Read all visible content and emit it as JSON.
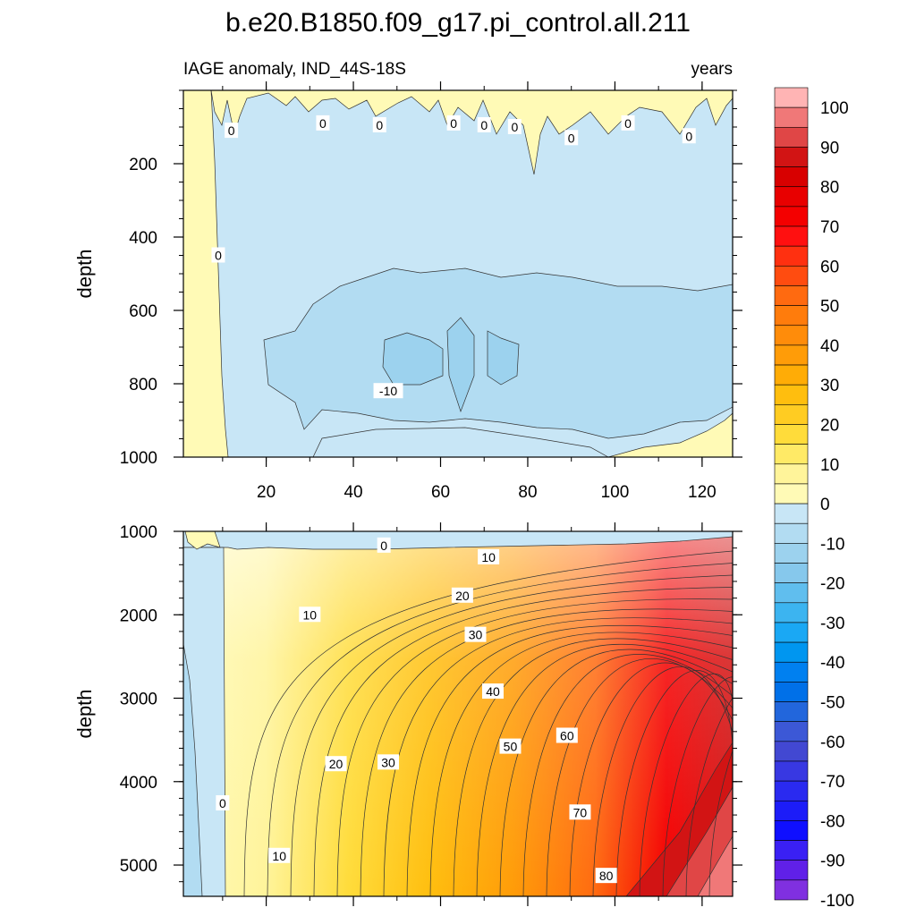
{
  "chart_data": [
    {
      "type": "heatmap",
      "panel": "upper",
      "title": "b.e20.B1850.f09_g17.pi_control.all.211",
      "left_string": "IAGE anomaly, IND_44S-18S",
      "right_string": "years",
      "xlabel": "",
      "ylabel": "depth",
      "xlim": [
        1,
        127
      ],
      "ylim": [
        0,
        1000
      ],
      "y_inverted": true,
      "x_ticks": [
        20,
        40,
        60,
        80,
        100,
        120
      ],
      "y_ticks": [
        200,
        400,
        600,
        800,
        1000
      ],
      "contour_labels": [
        {
          "text": "0",
          "x": 12,
          "y": 110
        },
        {
          "text": "0",
          "x": 33,
          "y": 90
        },
        {
          "text": "0",
          "x": 46,
          "y": 95
        },
        {
          "text": "0",
          "x": 63,
          "y": 90
        },
        {
          "text": "0",
          "x": 70,
          "y": 95
        },
        {
          "text": "0",
          "x": 77,
          "y": 100
        },
        {
          "text": "0",
          "x": 90,
          "y": 130
        },
        {
          "text": "0",
          "x": 103,
          "y": 90
        },
        {
          "text": "0",
          "x": 117,
          "y": 125
        },
        {
          "text": "0",
          "x": 9,
          "y": 450
        },
        {
          "text": "-10",
          "x": 48,
          "y": 820
        }
      ]
    },
    {
      "type": "heatmap",
      "panel": "lower",
      "xlabel": "",
      "ylabel": "depth",
      "xlim": [
        1,
        127
      ],
      "ylim": [
        1000,
        5375
      ],
      "y_inverted": true,
      "x_ticks": [
        20,
        40,
        60,
        80,
        100,
        120
      ],
      "y_ticks": [
        1000,
        2000,
        3000,
        4000,
        5000
      ],
      "contour_labels": [
        {
          "text": "0",
          "x": 47,
          "y": 1170
        },
        {
          "text": "10",
          "x": 71,
          "y": 1310
        },
        {
          "text": "20",
          "x": 65,
          "y": 1770
        },
        {
          "text": "30",
          "x": 68,
          "y": 2240
        },
        {
          "text": "10",
          "x": 30,
          "y": 2000
        },
        {
          "text": "40",
          "x": 72,
          "y": 2920
        },
        {
          "text": "50",
          "x": 76,
          "y": 3580
        },
        {
          "text": "60",
          "x": 89,
          "y": 3450
        },
        {
          "text": "20",
          "x": 36,
          "y": 3790
        },
        {
          "text": "30",
          "x": 48,
          "y": 3770
        },
        {
          "text": "0",
          "x": 10,
          "y": 4260
        },
        {
          "text": "70",
          "x": 92,
          "y": 4370
        },
        {
          "text": "10",
          "x": 23,
          "y": 4890
        },
        {
          "text": "80",
          "x": 98,
          "y": 5130
        }
      ]
    },
    {
      "type": "colorbar",
      "levels": [
        -100,
        -90,
        -80,
        -70,
        -60,
        -50,
        -40,
        -30,
        -20,
        -10,
        0,
        10,
        20,
        30,
        40,
        50,
        60,
        70,
        80,
        90,
        100
      ],
      "labels": [
        "100",
        "90",
        "80",
        "70",
        "60",
        "50",
        "40",
        "30",
        "20",
        "10",
        "0",
        "-10",
        "-20",
        "-30",
        "-40",
        "-50",
        "-60",
        "-70",
        "-80",
        "-90",
        "-100"
      ],
      "colors_top_to_bottom": [
        "#ffb4b4",
        "#f07878",
        "#e04646",
        "#d21414",
        "#d80000",
        "#e80000",
        "#f40000",
        "#ff1010",
        "#ff3010",
        "#ff4c10",
        "#ff6a10",
        "#ff7c0c",
        "#ff8c0a",
        "#ff9c08",
        "#ffac06",
        "#ffbe0e",
        "#ffcc22",
        "#ffdc3a",
        "#ffea66",
        "#fff49a",
        "#fffab6",
        "#c8e6f6",
        "#b2dcf2",
        "#9cd2ee",
        "#86c8ec",
        "#60beee",
        "#3cb4f0",
        "#1aa8f4",
        "#0096f0",
        "#0080f0",
        "#0070e8",
        "#2266dc",
        "#3c58d6",
        "#4248d2",
        "#3838e2",
        "#2a2af0",
        "#1c1cf8",
        "#0f0fff",
        "#3a20f4",
        "#6020e8",
        "#8030e0"
      ]
    }
  ]
}
